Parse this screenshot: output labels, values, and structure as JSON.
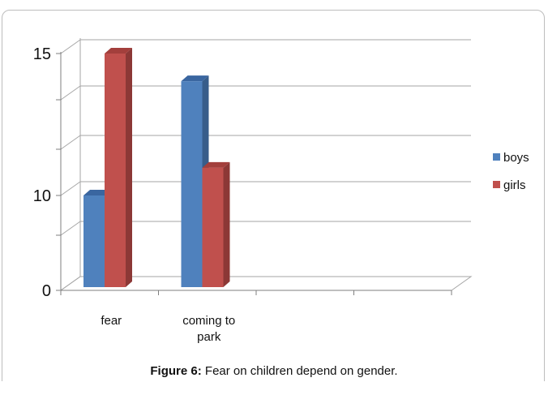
{
  "chart_data": {
    "type": "bar",
    "categories": [
      "fear",
      "coming to park"
    ],
    "category_lines": [
      [
        "fear"
      ],
      [
        "coming to",
        "park"
      ]
    ],
    "series": [
      {
        "name": "boys",
        "values": [
          10,
          14
        ],
        "color": "#4f81bd",
        "side": "#385d8a",
        "top": "#3a66a0"
      },
      {
        "name": "girls",
        "values": [
          15,
          11
        ],
        "color": "#c0504d",
        "side": "#8c3836",
        "top": "#a33f3c"
      }
    ],
    "yticks": [
      {
        "label": "0",
        "value": 0
      },
      {
        "label": "",
        "value": 8.5
      },
      {
        "label": "10",
        "value": 10
      },
      {
        "label": "",
        "value": 11.67
      },
      {
        "label": "",
        "value": 13.33
      },
      {
        "label": "15",
        "value": 15
      }
    ],
    "legend_position": "right",
    "grid": true
  },
  "caption": {
    "label": "Figure 6:",
    "text": " Fear on children depend on gender."
  }
}
